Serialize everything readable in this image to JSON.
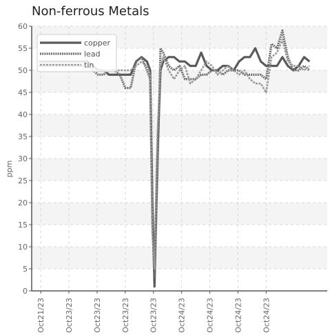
{
  "chart_data": {
    "type": "line",
    "title": "Non-ferrous Metals",
    "xlabel": "",
    "ylabel": "ppm",
    "ylim": [
      0,
      60
    ],
    "y_ticks": [
      0,
      5,
      10,
      15,
      20,
      25,
      30,
      35,
      40,
      45,
      50,
      55,
      60
    ],
    "x_tick_labels": [
      "Oct21/23",
      "Oct23/23",
      "Oct23/23",
      "Oct23/23",
      "Oct23/23",
      "Oct24/23",
      "Oct24/23",
      "Oct24/23",
      "Oct24/23"
    ],
    "grid": true,
    "legend_position": "top-left",
    "x": [
      0,
      1,
      2,
      3,
      4,
      5,
      6,
      7,
      8,
      9,
      10,
      11,
      12,
      13,
      14,
      15,
      16,
      17,
      18,
      19,
      20,
      20.6,
      21,
      21.4,
      21.9,
      22.5,
      23,
      24,
      25,
      26,
      27,
      28,
      29,
      30,
      31,
      32,
      33,
      34,
      35,
      36,
      37,
      38,
      39,
      40,
      41,
      42,
      43,
      44,
      45,
      46,
      47,
      48,
      49,
      50,
      51,
      52
    ],
    "series": [
      {
        "name": "copper",
        "color": "#5a5a5a",
        "values": [
          52,
          52,
          52,
          52,
          52,
          52,
          52,
          52,
          52,
          52,
          51,
          50,
          50,
          49,
          49,
          49,
          49,
          49,
          52,
          53,
          52,
          50,
          20,
          1,
          30,
          50,
          52,
          53,
          53,
          52,
          52,
          51,
          51,
          54,
          51,
          50,
          50,
          51,
          51,
          50,
          52,
          53,
          53,
          55,
          52,
          51,
          51,
          51,
          53,
          51,
          50,
          51,
          53,
          52,
          null,
          null
        ]
      },
      {
        "name": "lead",
        "color": "#6e6e6e",
        "values": [
          51,
          51,
          51,
          51,
          51,
          51,
          51,
          51,
          51,
          51,
          50,
          49,
          49,
          50,
          50,
          49,
          46,
          46,
          52,
          53,
          50,
          48,
          15,
          3,
          25,
          55,
          54,
          51,
          50,
          51,
          48,
          48,
          48,
          49,
          49,
          50,
          50,
          49,
          50,
          50,
          50,
          49,
          49,
          49,
          49,
          48,
          56,
          55,
          59,
          53,
          50,
          50,
          51,
          50,
          null,
          null
        ]
      },
      {
        "name": "tin",
        "color": "#9a9a9a",
        "values": [
          51,
          51,
          51,
          51,
          51,
          51,
          51,
          51,
          51,
          51,
          50,
          50,
          50,
          50,
          50,
          50,
          50,
          50,
          51,
          52,
          51,
          49,
          13,
          5,
          35,
          51,
          53,
          50,
          48,
          50,
          51,
          47,
          48,
          50,
          52,
          51,
          49,
          50,
          51,
          50,
          49,
          50,
          48,
          47,
          47,
          45,
          53,
          54,
          57,
          52,
          51,
          51,
          50,
          51,
          null,
          null
        ]
      }
    ]
  }
}
